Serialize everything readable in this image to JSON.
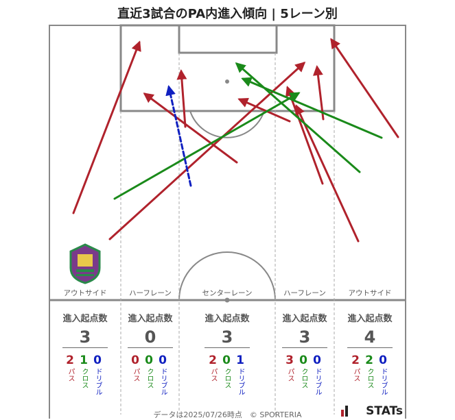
{
  "title": "直近3試合のPA内進入傾向 | 5レーン別",
  "footer": "データは2025/07/26時点　© SPORTERIA",
  "brand": "STATs",
  "colors": {
    "pass": "#b0222c",
    "cross": "#1a8a1a",
    "dribble": "#1020c0",
    "line": "#888888",
    "text": "#555555"
  },
  "lanes": [
    {
      "name": "アウトサイド",
      "count_title": "進入起点数",
      "total": "3",
      "pass": "2",
      "cross": "1",
      "dribble": "0"
    },
    {
      "name": "ハーフレーン",
      "count_title": "進入起点数",
      "total": "0",
      "pass": "0",
      "cross": "0",
      "dribble": "0"
    },
    {
      "name": "センターレーン",
      "count_title": "進入起点数",
      "total": "3",
      "pass": "2",
      "cross": "0",
      "dribble": "1"
    },
    {
      "name": "ハーフレーン",
      "count_title": "進入起点数",
      "total": "3",
      "pass": "3",
      "cross": "0",
      "dribble": "0"
    },
    {
      "name": "アウトサイド",
      "count_title": "進入起点数",
      "total": "4",
      "pass": "2",
      "cross": "2",
      "dribble": "0"
    }
  ],
  "labels": {
    "pass": "パス",
    "cross": "クロス",
    "dribble": "ドリブル"
  },
  "chart_data": {
    "type": "scatter",
    "title": "直近3試合のPA内進入傾向 | 5レーン別",
    "series": [
      {
        "name": "パス",
        "arrows": [
          {
            "from": [
              107,
              311
            ],
            "to": [
              203,
              62
            ]
          },
          {
            "from": [
              160,
              349
            ],
            "to": [
              443,
              92
            ]
          },
          {
            "from": [
              270,
              185
            ],
            "to": [
              264,
              104
            ]
          },
          {
            "from": [
              345,
              237
            ],
            "to": [
              211,
              137
            ]
          },
          {
            "from": [
              422,
              177
            ],
            "to": [
              349,
              145
            ]
          },
          {
            "from": [
              471,
              174
            ],
            "to": [
              462,
              98
            ]
          },
          {
            "from": [
              470,
              268
            ],
            "to": [
              419,
              128
            ]
          },
          {
            "from": [
              522,
              352
            ],
            "to": [
              432,
              155
            ]
          },
          {
            "from": [
              580,
              200
            ],
            "to": [
              483,
              58
            ]
          }
        ]
      },
      {
        "name": "クロス",
        "arrows": [
          {
            "from": [
              167,
              290
            ],
            "to": [
              435,
              136
            ]
          },
          {
            "from": [
              524,
              251
            ],
            "to": [
              345,
              93
            ]
          },
          {
            "from": [
              556,
              201
            ],
            "to": [
              354,
              115
            ]
          }
        ]
      },
      {
        "name": "ドリブル",
        "arrows": [
          {
            "from": [
              278,
              271
            ],
            "to": [
              246,
              127
            ]
          }
        ]
      }
    ]
  }
}
